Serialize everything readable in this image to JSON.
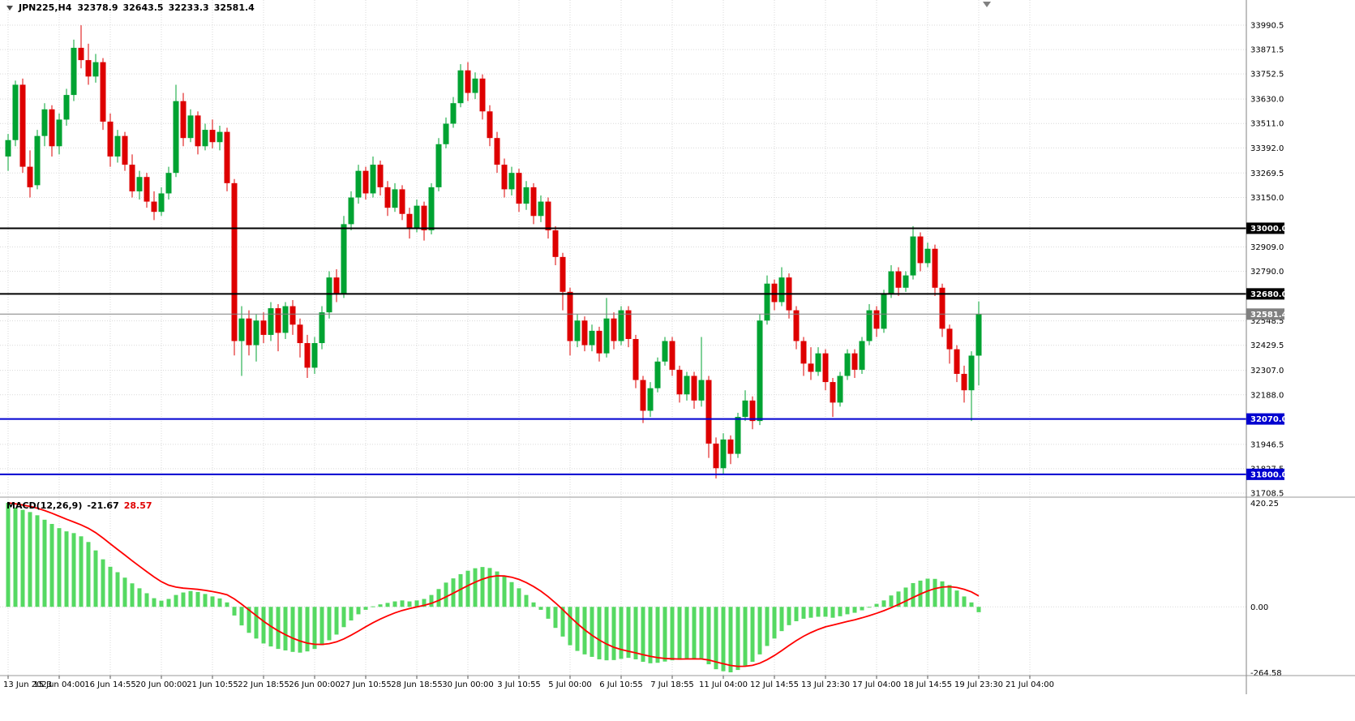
{
  "header": {
    "symbol_period": "JPN225,H4",
    "open": "32378.9",
    "high": "32643.5",
    "low": "32233.3",
    "close": "32581.4"
  },
  "indicator": {
    "name": "MACD(12,26,9)",
    "main_value": "-21.67",
    "signal_value": "28.57"
  },
  "icons": {
    "symbol_marker": "triangle-down",
    "shift_marker": "triangle-down"
  },
  "colors": {
    "background": "#FFFFFF",
    "bull": "#00A332",
    "bear": "#DE0000",
    "macd_histogram": "#55D962",
    "macd_signal": "#FF0000",
    "grid": "#D9D9D9",
    "axis_text": "#000000",
    "divider": "#999999",
    "badge_black": "#000000",
    "badge_blue": "#0000D0",
    "badge_gray": "#808080"
  },
  "chart_data": {
    "type": "candlestick",
    "symbol": "JPN225",
    "timeframe": "H4",
    "grid": true,
    "legend_position": "top-left",
    "price_axis": {
      "ticks": [
        33990.5,
        33871.5,
        33752.5,
        33630.0,
        33511.0,
        33392.0,
        33269.5,
        33150.0,
        32909.0,
        32790.0,
        32548.5,
        32429.5,
        32307.0,
        32188.0,
        31946.5,
        31827.5,
        31708.5
      ]
    },
    "hlines": [
      {
        "price": 33000.0,
        "label": "33000.0",
        "color": "#000000",
        "width": 2
      },
      {
        "price": 32680.0,
        "label": "32680.0",
        "color": "#000000",
        "width": 2
      },
      {
        "price": 32070.0,
        "label": "32070.0",
        "color": "#0000D0",
        "width": 2
      },
      {
        "price": 31800.0,
        "label": "31800.0",
        "color": "#0000D0",
        "width": 2
      }
    ],
    "current_price": {
      "value": 32581.4,
      "label": "32581.4",
      "color": "#808080"
    },
    "time_labels": [
      "13 Jun 2023",
      "15 Jun 04:00",
      "16 Jun 14:55",
      "20 Jun 00:00",
      "21 Jun 10:55",
      "22 Jun 18:55",
      "26 Jun 00:00",
      "27 Jun 10:55",
      "28 Jun 18:55",
      "30 Jun 00:00",
      "3 Jul 10:55",
      "5 Jul 00:00",
      "6 Jul 10:55",
      "7 Jul 18:55",
      "11 Jul 04:00",
      "12 Jul 14:55",
      "13 Jul 23:30",
      "17 Jul 04:00",
      "18 Jul 14:55",
      "19 Jul 23:30",
      "21 Jul 04:00"
    ],
    "candles": [
      [
        33350,
        33460,
        33280,
        33430
      ],
      [
        33430,
        33720,
        33400,
        33700
      ],
      [
        33700,
        33730,
        33270,
        33300
      ],
      [
        33300,
        33380,
        33150,
        33200
      ],
      [
        33210,
        33480,
        33190,
        33450
      ],
      [
        33450,
        33610,
        33400,
        33580
      ],
      [
        33580,
        33600,
        33350,
        33400
      ],
      [
        33400,
        33560,
        33360,
        33530
      ],
      [
        33530,
        33680,
        33500,
        33650
      ],
      [
        33650,
        33920,
        33620,
        33880
      ],
      [
        33880,
        33990,
        33780,
        33820
      ],
      [
        33820,
        33900,
        33700,
        33740
      ],
      [
        33740,
        33850,
        33710,
        33810
      ],
      [
        33810,
        33830,
        33480,
        33520
      ],
      [
        33520,
        33560,
        33300,
        33350
      ],
      [
        33350,
        33480,
        33320,
        33450
      ],
      [
        33450,
        33470,
        33280,
        33310
      ],
      [
        33310,
        33360,
        33150,
        33180
      ],
      [
        33180,
        33280,
        33140,
        33250
      ],
      [
        33250,
        33270,
        33100,
        33130
      ],
      [
        33130,
        33180,
        33040,
        33080
      ],
      [
        33080,
        33200,
        33060,
        33170
      ],
      [
        33170,
        33300,
        33140,
        33270
      ],
      [
        33270,
        33700,
        33250,
        33620
      ],
      [
        33620,
        33660,
        33400,
        33440
      ],
      [
        33440,
        33580,
        33420,
        33550
      ],
      [
        33550,
        33570,
        33360,
        33400
      ],
      [
        33400,
        33510,
        33380,
        33480
      ],
      [
        33480,
        33530,
        33390,
        33420
      ],
      [
        33420,
        33500,
        33380,
        33470
      ],
      [
        33470,
        33490,
        33180,
        33220
      ],
      [
        33220,
        33240,
        32380,
        32450
      ],
      [
        32450,
        32620,
        32280,
        32560
      ],
      [
        32560,
        32600,
        32380,
        32430
      ],
      [
        32430,
        32580,
        32350,
        32550
      ],
      [
        32550,
        32590,
        32440,
        32480
      ],
      [
        32480,
        32640,
        32450,
        32610
      ],
      [
        32610,
        32630,
        32400,
        32490
      ],
      [
        32490,
        32640,
        32460,
        32620
      ],
      [
        32620,
        32650,
        32480,
        32530
      ],
      [
        32530,
        32560,
        32370,
        32440
      ],
      [
        32440,
        32480,
        32270,
        32320
      ],
      [
        32320,
        32470,
        32290,
        32440
      ],
      [
        32440,
        32620,
        32410,
        32590
      ],
      [
        32590,
        32790,
        32560,
        32760
      ],
      [
        32760,
        32800,
        32640,
        32680
      ],
      [
        32680,
        33060,
        32660,
        33020
      ],
      [
        33020,
        33180,
        32990,
        33150
      ],
      [
        33150,
        33310,
        33120,
        33280
      ],
      [
        33280,
        33300,
        33140,
        33170
      ],
      [
        33170,
        33350,
        33150,
        33310
      ],
      [
        33310,
        33330,
        33160,
        33200
      ],
      [
        33200,
        33230,
        33060,
        33100
      ],
      [
        33100,
        33220,
        33080,
        33190
      ],
      [
        33190,
        33210,
        33040,
        33070
      ],
      [
        33070,
        33100,
        32950,
        33000
      ],
      [
        33000,
        33140,
        32980,
        33110
      ],
      [
        33110,
        33130,
        32940,
        32990
      ],
      [
        32990,
        33220,
        32970,
        33200
      ],
      [
        33200,
        33440,
        33180,
        33410
      ],
      [
        33410,
        33540,
        33390,
        33510
      ],
      [
        33510,
        33640,
        33490,
        33610
      ],
      [
        33610,
        33800,
        33590,
        33770
      ],
      [
        33770,
        33810,
        33620,
        33660
      ],
      [
        33660,
        33760,
        33630,
        33730
      ],
      [
        33730,
        33750,
        33530,
        33570
      ],
      [
        33570,
        33600,
        33400,
        33440
      ],
      [
        33440,
        33470,
        33270,
        33310
      ],
      [
        33310,
        33340,
        33150,
        33190
      ],
      [
        33190,
        33300,
        33160,
        33270
      ],
      [
        33270,
        33290,
        33080,
        33120
      ],
      [
        33120,
        33230,
        33090,
        33200
      ],
      [
        33200,
        33220,
        33020,
        33060
      ],
      [
        33060,
        33160,
        33030,
        33130
      ],
      [
        33130,
        33150,
        32950,
        32990
      ],
      [
        32990,
        33010,
        32820,
        32860
      ],
      [
        32860,
        32880,
        32600,
        32690
      ],
      [
        32690,
        32710,
        32380,
        32450
      ],
      [
        32450,
        32580,
        32420,
        32550
      ],
      [
        32550,
        32570,
        32400,
        32430
      ],
      [
        32430,
        32530,
        32400,
        32500
      ],
      [
        32500,
        32520,
        32350,
        32390
      ],
      [
        32390,
        32660,
        32370,
        32560
      ],
      [
        32560,
        32590,
        32410,
        32450
      ],
      [
        32450,
        32620,
        32430,
        32600
      ],
      [
        32600,
        32620,
        32420,
        32460
      ],
      [
        32460,
        32480,
        32220,
        32260
      ],
      [
        32260,
        32280,
        32050,
        32110
      ],
      [
        32110,
        32250,
        32080,
        32220
      ],
      [
        32220,
        32370,
        32200,
        32350
      ],
      [
        32350,
        32470,
        32330,
        32450
      ],
      [
        32450,
        32470,
        32280,
        32310
      ],
      [
        32310,
        32330,
        32150,
        32190
      ],
      [
        32190,
        32300,
        32160,
        32280
      ],
      [
        32280,
        32300,
        32120,
        32160
      ],
      [
        32160,
        32470,
        32130,
        32260
      ],
      [
        32260,
        32280,
        31880,
        31950
      ],
      [
        31950,
        31980,
        31780,
        31830
      ],
      [
        31830,
        32000,
        31800,
        31970
      ],
      [
        31970,
        31990,
        31850,
        31900
      ],
      [
        31900,
        32100,
        31880,
        32080
      ],
      [
        32080,
        32210,
        32060,
        32160
      ],
      [
        32160,
        32180,
        32020,
        32060
      ],
      [
        32060,
        32580,
        32040,
        32550
      ],
      [
        32550,
        32770,
        32530,
        32730
      ],
      [
        32730,
        32750,
        32600,
        32640
      ],
      [
        32640,
        32810,
        32620,
        32760
      ],
      [
        32760,
        32780,
        32560,
        32600
      ],
      [
        32600,
        32620,
        32410,
        32450
      ],
      [
        32450,
        32470,
        32280,
        32340
      ],
      [
        32340,
        32420,
        32260,
        32300
      ],
      [
        32300,
        32420,
        32280,
        32390
      ],
      [
        32390,
        32410,
        32210,
        32250
      ],
      [
        32250,
        32270,
        32080,
        32150
      ],
      [
        32150,
        32300,
        32130,
        32280
      ],
      [
        32280,
        32410,
        32260,
        32390
      ],
      [
        32390,
        32410,
        32270,
        32310
      ],
      [
        32310,
        32470,
        32290,
        32450
      ],
      [
        32450,
        32630,
        32430,
        32600
      ],
      [
        32600,
        32620,
        32470,
        32510
      ],
      [
        32510,
        32700,
        32490,
        32680
      ],
      [
        32680,
        32820,
        32660,
        32790
      ],
      [
        32790,
        32810,
        32670,
        32710
      ],
      [
        32710,
        32790,
        32690,
        32770
      ],
      [
        32770,
        33010,
        32750,
        32960
      ],
      [
        32960,
        32980,
        32790,
        32830
      ],
      [
        32830,
        32930,
        32810,
        32900
      ],
      [
        32900,
        32920,
        32670,
        32710
      ],
      [
        32710,
        32730,
        32470,
        32510
      ],
      [
        32510,
        32530,
        32340,
        32410
      ],
      [
        32410,
        32430,
        32250,
        32290
      ],
      [
        32290,
        32330,
        32150,
        32210
      ],
      [
        32210,
        32400,
        32060,
        32379
      ],
      [
        32378.9,
        32643.5,
        32233.3,
        32581.4
      ]
    ],
    "macd": {
      "params": "12,26,9",
      "scale": {
        "max": 420.25,
        "zero": 0.0,
        "min": -264.58
      },
      "histogram": [
        420.25,
        400,
        392,
        383,
        370,
        352,
        335,
        318,
        305,
        298,
        285,
        262,
        228,
        192,
        162,
        140,
        118,
        95,
        75,
        55,
        35,
        25,
        32,
        48,
        58,
        64,
        60,
        52,
        42,
        34,
        18,
        -35,
        -75,
        -105,
        -128,
        -148,
        -160,
        -170,
        -176,
        -182,
        -185,
        -180,
        -170,
        -155,
        -135,
        -112,
        -82,
        -55,
        -30,
        -12,
        2,
        10,
        16,
        22,
        26,
        22,
        26,
        32,
        48,
        72,
        98,
        115,
        132,
        146,
        156,
        161,
        157,
        143,
        122,
        100,
        75,
        48,
        18,
        -12,
        -48,
        -85,
        -120,
        -155,
        -178,
        -192,
        -202,
        -212,
        -216,
        -215,
        -210,
        -206,
        -212,
        -222,
        -228,
        -226,
        -221,
        -216,
        -214,
        -210,
        -208,
        -212,
        -232,
        -252,
        -260,
        -264.58,
        -255,
        -238,
        -222,
        -192,
        -158,
        -128,
        -98,
        -74,
        -58,
        -48,
        -44,
        -40,
        -40,
        -44,
        -38,
        -30,
        -24,
        -14,
        0,
        12,
        26,
        46,
        62,
        78,
        96,
        106,
        114,
        113,
        103,
        88,
        66,
        42,
        18,
        -21.67
      ]
    }
  }
}
